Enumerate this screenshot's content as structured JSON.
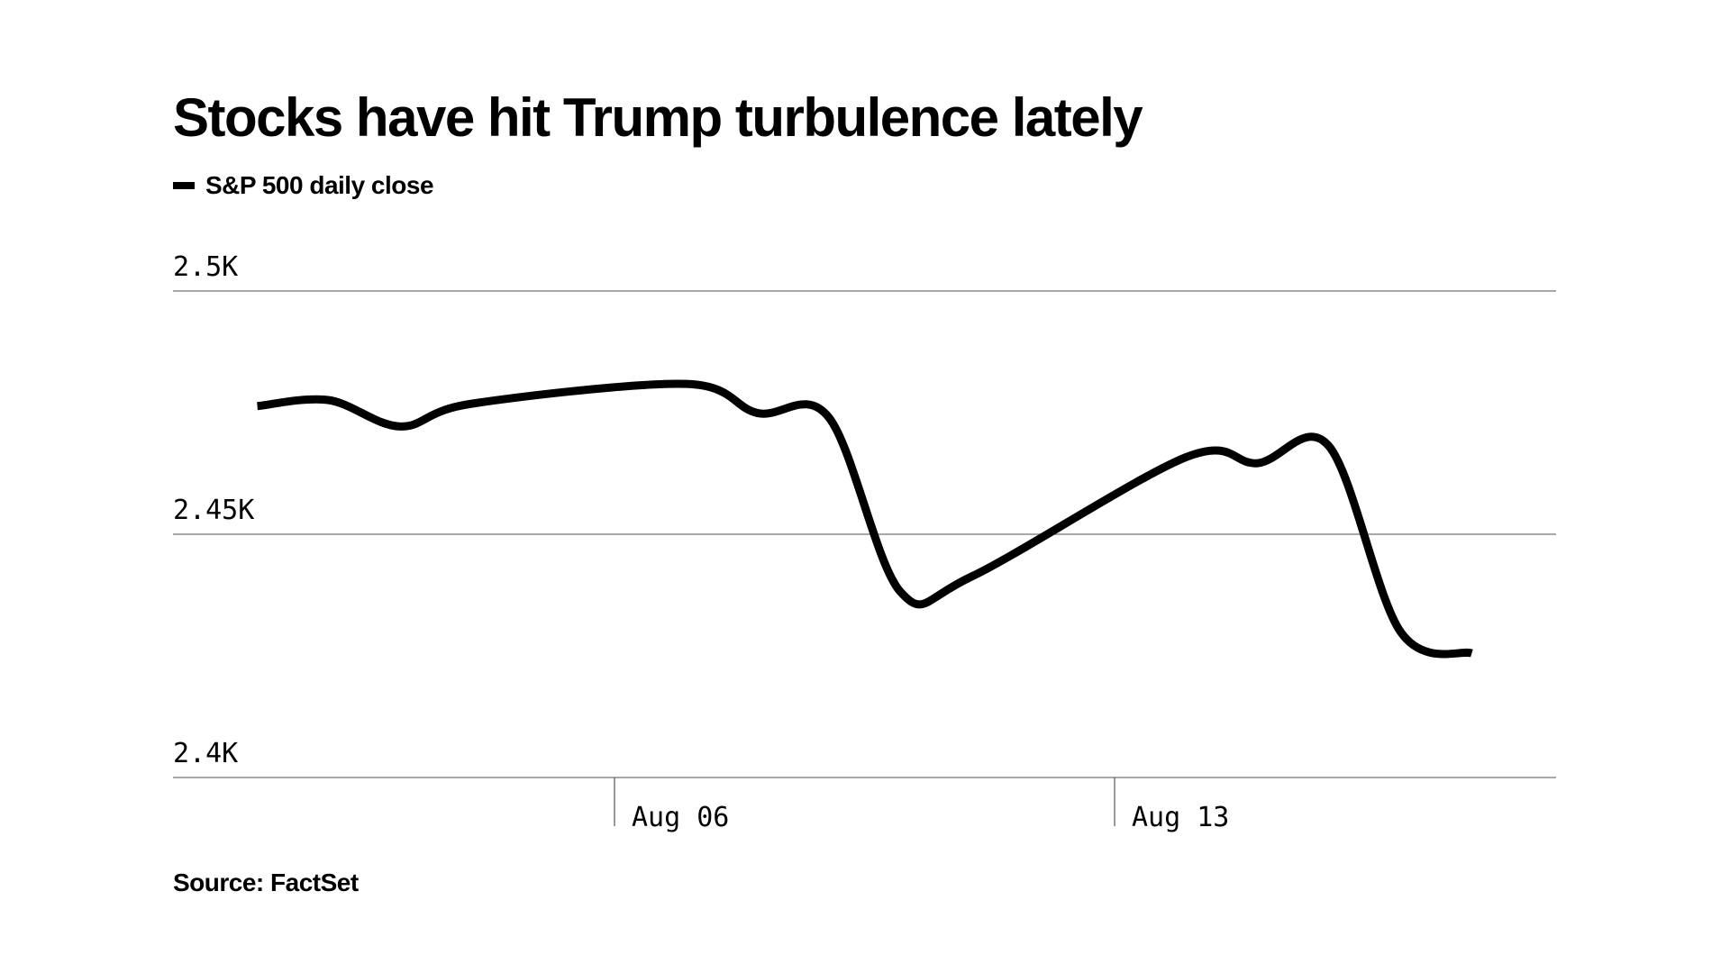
{
  "chart_data": {
    "type": "line",
    "title": "Stocks have hit Trump turbulence lately",
    "legend": [
      {
        "name": "S&P 500 daily close",
        "color": "#000000"
      }
    ],
    "source": "Source: FactSet",
    "x": [
      "2017-08-01",
      "2017-08-02",
      "2017-08-03",
      "2017-08-04",
      "2017-08-07",
      "2017-08-08",
      "2017-08-09",
      "2017-08-10",
      "2017-08-11",
      "2017-08-14",
      "2017-08-15",
      "2017-08-16",
      "2017-08-17",
      "2017-08-18"
    ],
    "series": [
      {
        "name": "S&P 500 daily close",
        "values": [
          2476.35,
          2477.57,
          2472.16,
          2476.83,
          2480.91,
          2474.92,
          2474.02,
          2438.21,
          2441.32,
          2465.84,
          2464.61,
          2468.11,
          2430.01,
          2425.55
        ]
      }
    ],
    "ylim": [
      2400,
      2500
    ],
    "yticks": [
      {
        "value": 2500,
        "label": "2.5K"
      },
      {
        "value": 2450,
        "label": "2.45K"
      },
      {
        "value": 2400,
        "label": "2.4K"
      }
    ],
    "xticks": [
      {
        "date": "2017-08-06",
        "label": "Aug 06"
      },
      {
        "date": "2017-08-13",
        "label": "Aug 13"
      }
    ],
    "grid": true,
    "legend_position": "top-left",
    "line_color": "#000000",
    "grid_color": "#8a8a8a"
  }
}
